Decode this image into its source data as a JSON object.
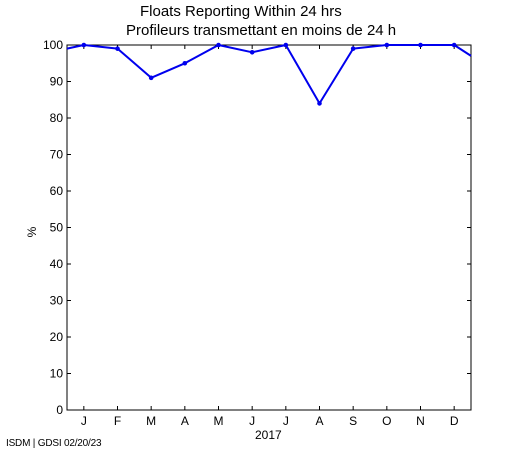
{
  "chart_data": {
    "type": "line",
    "title_lines": [
      "Floats Reporting Within 24 hrs",
      "Profileurs transmettant en moins de 24 h"
    ],
    "xlabel": "2017",
    "ylabel": "%",
    "x_tick_labels": [
      "J",
      "F",
      "M",
      "A",
      "M",
      "J",
      "J",
      "A",
      "S",
      "O",
      "N",
      "D"
    ],
    "y_ticks": [
      0,
      10,
      20,
      30,
      40,
      50,
      60,
      70,
      80,
      90,
      100
    ],
    "ylim": [
      0,
      100
    ],
    "xlim": [
      0.5,
      12.5
    ],
    "grid": false,
    "legend": "none",
    "line_color": "#0000ee",
    "series": [
      {
        "x": [
          0.5,
          1,
          2,
          3,
          4,
          5,
          6,
          7,
          8,
          9,
          10,
          11,
          12,
          12.5
        ],
        "values": [
          99,
          100,
          99,
          91,
          95,
          100,
          98,
          100,
          84,
          99,
          100,
          100,
          100,
          97
        ]
      }
    ]
  },
  "footer": "ISDM | GDSI 02/20/23"
}
